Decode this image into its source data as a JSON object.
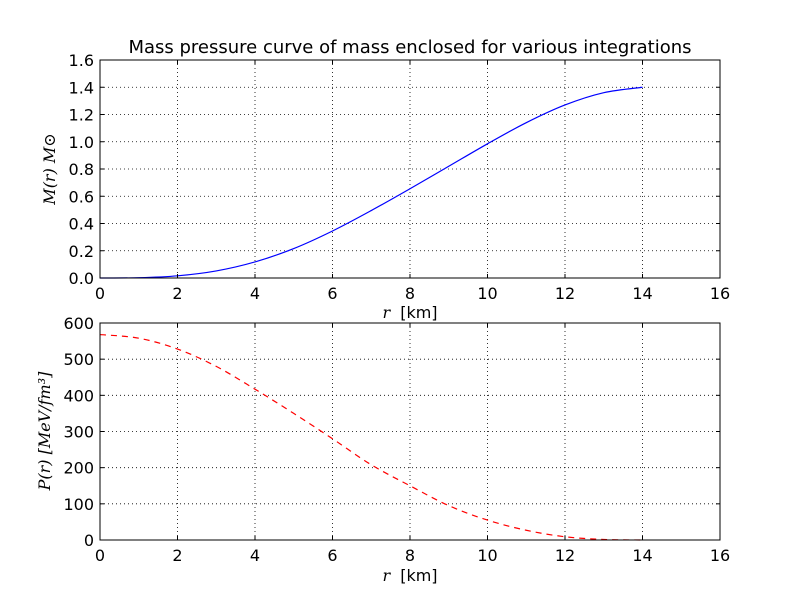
{
  "chart_data": [
    {
      "type": "line",
      "title": "Mass pressure curve of mass enclosed for various integrations",
      "xlabel_math": "r",
      "xlabel_unit": "[km]",
      "ylabel": "M(r) M⊙",
      "xlim": [
        0,
        16
      ],
      "ylim": [
        0,
        1.6
      ],
      "xticks": [
        "0",
        "2",
        "4",
        "6",
        "8",
        "10",
        "12",
        "14",
        "16"
      ],
      "yticks": [
        "0.0",
        "0.2",
        "0.4",
        "0.6",
        "0.8",
        "1.0",
        "1.2",
        "1.4",
        "1.6"
      ],
      "grid": true,
      "series": [
        {
          "color": "#0000ff",
          "style": "solid",
          "x": [
            0,
            1,
            2,
            3,
            4,
            5,
            6,
            7,
            8,
            9,
            10,
            11,
            12,
            13,
            14
          ],
          "y": [
            0.0,
            0.002,
            0.016,
            0.052,
            0.118,
            0.216,
            0.345,
            0.495,
            0.655,
            0.82,
            0.985,
            1.14,
            1.27,
            1.36,
            1.4
          ]
        }
      ]
    },
    {
      "type": "line",
      "title": "",
      "xlabel_math": "r",
      "xlabel_unit": "[km]",
      "ylabel": "P(r) [MeV/fm³]",
      "xlim": [
        0,
        16
      ],
      "ylim": [
        0,
        600
      ],
      "xticks": [
        "0",
        "2",
        "4",
        "6",
        "8",
        "10",
        "12",
        "14",
        "16"
      ],
      "yticks": [
        "0",
        "100",
        "200",
        "300",
        "400",
        "500",
        "600"
      ],
      "grid": true,
      "series": [
        {
          "color": "#ff0000",
          "style": "dashed",
          "x": [
            0,
            1,
            2,
            3,
            4,
            5,
            6,
            7,
            8,
            9,
            10,
            11,
            12,
            13,
            14
          ],
          "y": [
            568,
            558,
            528,
            480,
            417,
            350,
            280,
            208,
            150,
            95,
            55,
            27,
            9,
            1.5,
            0
          ]
        }
      ]
    }
  ]
}
